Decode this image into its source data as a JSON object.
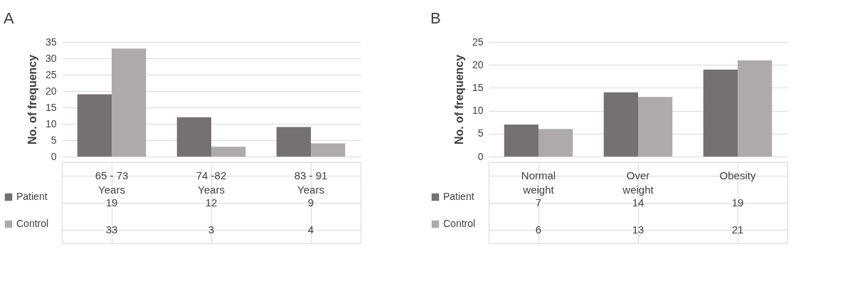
{
  "chart_data": [
    {
      "type": "bar",
      "title": "A",
      "ylabel": "No. of frequency",
      "categories": [
        "65 - 73 Years",
        "74 -82 Years",
        "83 - 91 Years"
      ],
      "series": [
        {
          "name": "Patient",
          "color": "#767171",
          "values": [
            19,
            12,
            9
          ]
        },
        {
          "name": "Control",
          "color": "#aeaaaa",
          "values": [
            33,
            3,
            4
          ]
        }
      ],
      "ylim": [
        0,
        35
      ],
      "yticks": [
        0,
        5,
        10,
        15,
        20,
        25,
        30,
        35
      ],
      "grid": "y",
      "legend": "bottom left",
      "data_labels": true
    },
    {
      "type": "bar",
      "title": "B",
      "ylabel": "No. of frequency",
      "categories": [
        "Normal weight",
        "Over weight",
        "Obesity"
      ],
      "series": [
        {
          "name": "Patient",
          "color": "#767171",
          "values": [
            7,
            14,
            19
          ]
        },
        {
          "name": "Control",
          "color": "#aeaaaa",
          "values": [
            6,
            13,
            21
          ]
        }
      ],
      "ylim": [
        0,
        25
      ],
      "yticks": [
        0,
        5,
        10,
        15,
        20,
        25
      ],
      "grid": "y",
      "legend": "bottom left",
      "data_labels": true
    }
  ]
}
